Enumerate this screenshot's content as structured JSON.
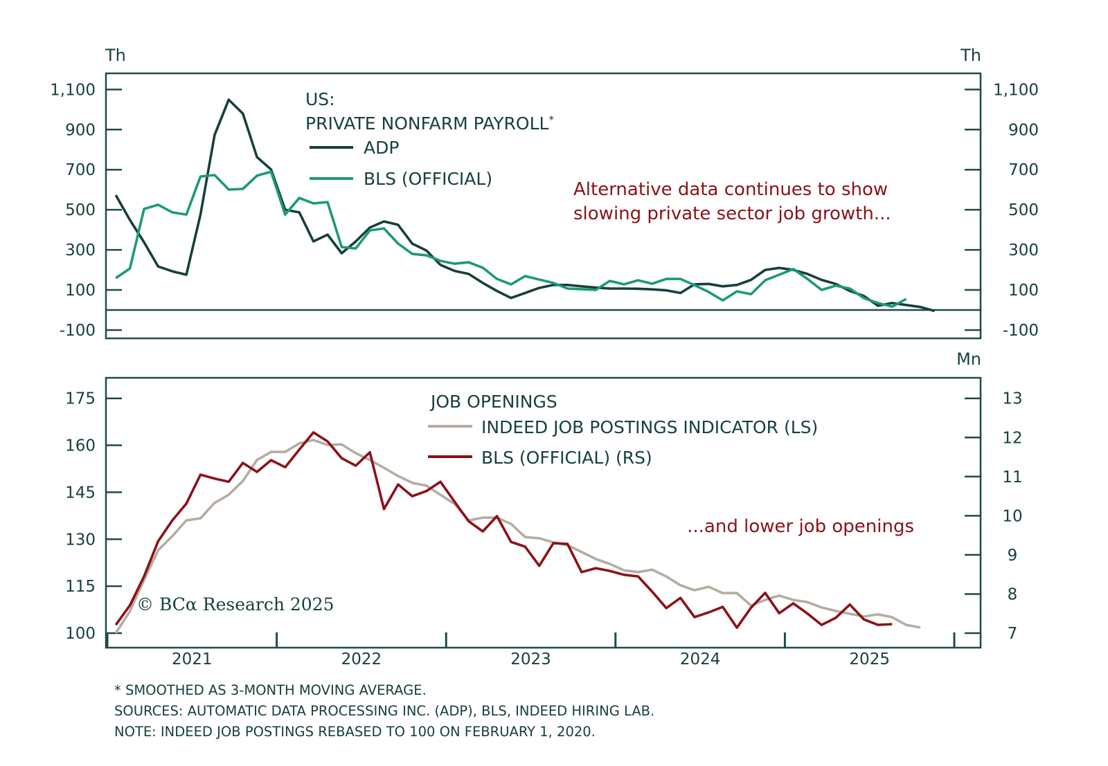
{
  "colors": {
    "frame": "#1f4a4a",
    "adp": "#173f3c",
    "bls_payroll": "#1a9a77",
    "indeed": "#b5aca2",
    "bls_openings": "#8b1218",
    "annotation": "#8b1218",
    "text": "#17403f"
  },
  "chart_data": [
    {
      "type": "line",
      "title": "US: PRIVATE NONFARM PAYROLL*",
      "title_lines": [
        "US:",
        "PRIVATE NONFARM PAYROLL*"
      ],
      "unit_left": "Th",
      "unit_right": "Th",
      "ylim": [
        -175,
        1175
      ],
      "yticks": [
        1100,
        900,
        700,
        500,
        300,
        100,
        -100
      ],
      "ytick_labels": [
        "1,100",
        "900",
        "700",
        "500",
        "300",
        "100",
        "-100"
      ],
      "zero_line": true,
      "grid": false,
      "legend_position": "top-center",
      "x_start": "2021-01",
      "x_frequency": "monthly",
      "annotation": [
        "Alternative data continues to show",
        "slowing private sector job growth..."
      ],
      "series": [
        {
          "name": "ADP",
          "key": "adp",
          "values": [
            573,
            449,
            338,
            217,
            193,
            176,
            476,
            873,
            1049,
            980,
            763,
            701,
            500,
            487,
            342,
            376,
            283,
            342,
            411,
            442,
            425,
            331,
            297,
            225,
            195,
            180,
            135,
            95,
            60,
            85,
            110,
            125,
            125,
            118,
            112,
            107,
            107,
            106,
            103,
            98,
            85,
            128,
            130,
            118,
            125,
            150,
            200,
            210,
            200,
            180,
            150,
            130,
            95,
            70,
            21,
            35,
            25,
            15,
            -5
          ]
        },
        {
          "name": "BLS (OFFICIAL)",
          "key": "bls_payroll",
          "values": [
            159,
            207,
            504,
            525,
            487,
            476,
            666,
            673,
            601,
            604,
            670,
            690,
            476,
            559,
            532,
            538,
            314,
            307,
            397,
            407,
            331,
            280,
            273,
            245,
            231,
            238,
            211,
            155,
            128,
            169,
            152,
            135,
            107,
            104,
            100,
            145,
            128,
            148,
            131,
            155,
            155,
            124,
            90,
            48,
            93,
            79,
            148,
            176,
            204,
            155,
            100,
            121,
            107,
            59,
            35,
            17,
            55
          ]
        }
      ]
    },
    {
      "type": "line",
      "title": "JOB OPENINGS",
      "unit_left": "",
      "unit_right": "Mn",
      "ylim_left": [
        95,
        180
      ],
      "ylim_right": [
        6.6,
        13.4
      ],
      "yticks_left": [
        175,
        160,
        145,
        130,
        115,
        100
      ],
      "yticks_right": [
        13,
        12,
        11,
        10,
        9,
        8,
        7
      ],
      "grid": false,
      "legend_position": "top-center",
      "x_start": "2021-01",
      "x_frequency": "monthly",
      "xlabels": [
        "2021",
        "2022",
        "2023",
        "2024",
        "2025"
      ],
      "annotation": "...and lower job openings",
      "series": [
        {
          "name": "INDEED JOB POSTINGS INDICATOR (LS)",
          "key": "indeed",
          "axis": "left",
          "values": [
            100,
            107,
            117,
            126.5,
            131,
            136,
            136.7,
            141.6,
            144.2,
            148.6,
            155.3,
            157.9,
            157.9,
            160.6,
            161.7,
            160.1,
            160.3,
            157.5,
            155.3,
            152.8,
            150.2,
            148,
            147.1,
            144.2,
            141.3,
            136,
            136.9,
            136.9,
            134.9,
            130.7,
            130.3,
            129,
            128.1,
            125.9,
            123.7,
            122.1,
            120.1,
            119.5,
            120.3,
            118.1,
            115.3,
            113.7,
            114.8,
            112.8,
            112.8,
            108.8,
            110.6,
            112,
            110.6,
            109.9,
            108.2,
            107.1,
            106.2,
            105.3,
            106,
            105.1,
            102.6,
            101.8
          ]
        },
        {
          "name": "BLS (OFFICIAL) (RS)",
          "key": "bls_openings",
          "axis": "right",
          "values": [
            7.21,
            7.71,
            8.45,
            9.35,
            9.88,
            10.31,
            11.05,
            10.95,
            10.87,
            11.35,
            11.12,
            11.42,
            11.24,
            11.69,
            12.13,
            11.9,
            11.47,
            11.28,
            11.62,
            10.17,
            10.8,
            10.5,
            10.63,
            10.87,
            10.36,
            9.86,
            9.6,
            9.99,
            9.33,
            9.21,
            8.72,
            9.3,
            9.28,
            8.56,
            8.66,
            8.59,
            8.49,
            8.45,
            8.06,
            7.64,
            7.9,
            7.41,
            7.53,
            7.67,
            7.14,
            7.65,
            8.03,
            7.51,
            7.76,
            7.5,
            7.21,
            7.39,
            7.73,
            7.35,
            7.21,
            7.23
          ]
        }
      ]
    }
  ],
  "top": {
    "unit_left": "Th",
    "unit_right": "Th",
    "title_line1": "US:",
    "title_line2": "PRIVATE NONFARM PAYROLL",
    "title_asterisk": "*",
    "legend_adp": "ADP",
    "legend_bls": "BLS (OFFICIAL)",
    "annotation_line1": "Alternative data continues to show",
    "annotation_line2": "slowing private sector job growth...",
    "ticks": [
      "1,100",
      "900",
      "700",
      "500",
      "300",
      "100",
      "-100"
    ]
  },
  "bottom": {
    "unit_right": "Mn",
    "title": "JOB OPENINGS",
    "legend_indeed": "INDEED JOB POSTINGS INDICATOR (LS)",
    "legend_bls": "BLS (OFFICIAL) (RS)",
    "annotation": "...and lower job openings",
    "ticks_left": [
      "175",
      "160",
      "145",
      "130",
      "115",
      "100"
    ],
    "ticks_right": [
      "13",
      "12",
      "11",
      "10",
      "9",
      "8",
      "7"
    ],
    "years": [
      "2021",
      "2022",
      "2023",
      "2024",
      "2025"
    ],
    "copyright": "© BCα Research 2025"
  },
  "footnotes": {
    "line1": "* SMOOTHED AS 3-MONTH MOVING AVERAGE.",
    "line2": "SOURCES: AUTOMATIC DATA PROCESSING INC. (ADP), BLS, INDEED HIRING LAB.",
    "line3": "NOTE: INDEED JOB POSTINGS REBASED TO 100 ON FEBRUARY 1, 2020."
  }
}
